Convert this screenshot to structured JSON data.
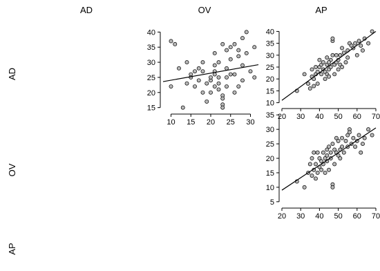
{
  "chart_data": [
    {
      "type": "scatter",
      "panel": "AD vs OV",
      "row_variable": "AD",
      "column_variable": "OV",
      "xlim": [
        8,
        32
      ],
      "ylim": [
        14,
        41
      ],
      "x_ticks": [
        10,
        15,
        20,
        25,
        30
      ],
      "y_ticks": [
        15,
        20,
        25,
        30,
        35,
        40
      ],
      "fit_line": {
        "x": [
          8,
          32
        ],
        "y": [
          23.6,
          29.2
        ]
      },
      "points": [
        [
          10,
          37
        ],
        [
          11,
          36
        ],
        [
          10,
          22
        ],
        [
          12,
          28
        ],
        [
          13,
          15
        ],
        [
          14,
          30
        ],
        [
          14,
          23
        ],
        [
          15,
          26
        ],
        [
          15,
          25
        ],
        [
          16,
          27
        ],
        [
          16,
          22
        ],
        [
          17,
          28
        ],
        [
          17,
          24
        ],
        [
          18,
          20
        ],
        [
          18,
          30
        ],
        [
          19,
          17
        ],
        [
          19,
          23
        ],
        [
          20,
          20
        ],
        [
          20,
          24
        ],
        [
          20,
          25
        ],
        [
          21,
          22
        ],
        [
          21,
          27
        ],
        [
          21,
          29
        ],
        [
          21,
          33
        ],
        [
          22,
          30
        ],
        [
          22,
          25
        ],
        [
          22,
          23
        ],
        [
          22,
          21
        ],
        [
          23,
          36
        ],
        [
          23,
          19
        ],
        [
          23,
          18
        ],
        [
          23,
          16
        ],
        [
          23,
          15
        ],
        [
          24,
          34
        ],
        [
          24,
          28
        ],
        [
          24,
          22
        ],
        [
          25,
          26
        ],
        [
          25,
          35
        ],
        [
          25,
          31
        ],
        [
          26,
          26
        ],
        [
          26,
          36
        ],
        [
          26,
          20
        ],
        [
          27,
          32
        ],
        [
          27,
          34
        ],
        [
          28,
          38
        ],
        [
          28,
          24
        ],
        [
          28,
          29
        ],
        [
          29,
          33
        ],
        [
          29,
          40
        ],
        [
          30,
          27
        ],
        [
          31,
          25
        ],
        [
          31,
          35
        ],
        [
          24,
          25
        ],
        [
          18,
          27
        ],
        [
          21,
          26
        ],
        [
          27,
          22
        ]
      ]
    },
    {
      "type": "scatter",
      "panel": "AD vs AP",
      "row_variable": "AD",
      "column_variable": "AP",
      "xlim": [
        20,
        70
      ],
      "ylim": [
        9,
        41
      ],
      "x_ticks": [
        20,
        30,
        40,
        50,
        60,
        70
      ],
      "y_ticks": [
        10,
        15,
        20,
        25,
        30,
        35,
        40
      ],
      "fit_line": {
        "x": [
          20,
          70
        ],
        "y": [
          11,
          40
        ]
      },
      "points": [
        [
          28,
          15
        ],
        [
          32,
          22
        ],
        [
          34,
          18
        ],
        [
          35,
          16
        ],
        [
          36,
          21
        ],
        [
          36,
          24
        ],
        [
          37,
          20
        ],
        [
          37,
          17
        ],
        [
          38,
          25
        ],
        [
          38,
          22
        ],
        [
          39,
          18
        ],
        [
          39,
          23
        ],
        [
          40,
          28
        ],
        [
          40,
          25
        ],
        [
          41,
          26
        ],
        [
          41,
          22
        ],
        [
          42,
          24
        ],
        [
          42,
          27
        ],
        [
          43,
          20
        ],
        [
          43,
          23
        ],
        [
          44,
          29
        ],
        [
          44,
          26
        ],
        [
          44,
          22
        ],
        [
          45,
          24
        ],
        [
          45,
          21
        ],
        [
          46,
          25
        ],
        [
          46,
          28
        ],
        [
          47,
          36
        ],
        [
          47,
          37
        ],
        [
          47,
          30
        ],
        [
          48,
          26
        ],
        [
          48,
          22
        ],
        [
          49,
          27
        ],
        [
          49,
          30
        ],
        [
          50,
          28
        ],
        [
          50,
          24
        ],
        [
          51,
          30
        ],
        [
          51,
          26
        ],
        [
          52,
          33
        ],
        [
          52,
          25
        ],
        [
          53,
          31
        ],
        [
          54,
          27
        ],
        [
          55,
          32
        ],
        [
          55,
          29
        ],
        [
          56,
          35
        ],
        [
          57,
          34
        ],
        [
          58,
          33
        ],
        [
          59,
          35
        ],
        [
          60,
          30
        ],
        [
          61,
          36
        ],
        [
          62,
          34
        ],
        [
          63,
          32
        ],
        [
          64,
          37
        ],
        [
          66,
          35
        ],
        [
          68,
          40
        ],
        [
          45,
          27
        ]
      ]
    },
    {
      "type": "scatter",
      "panel": "OV vs AP",
      "row_variable": "OV",
      "column_variable": "AP",
      "xlim": [
        20,
        70
      ],
      "ylim": [
        4,
        36
      ],
      "x_ticks": [
        20,
        30,
        40,
        50,
        60,
        70
      ],
      "y_ticks": [
        5,
        10,
        15,
        20,
        25,
        30,
        35
      ],
      "fit_line": {
        "x": [
          20,
          70
        ],
        "y": [
          9,
          30.5
        ]
      },
      "points": [
        [
          28,
          12
        ],
        [
          32,
          10
        ],
        [
          34,
          15
        ],
        [
          35,
          18
        ],
        [
          36,
          14
        ],
        [
          36,
          20
        ],
        [
          37,
          16
        ],
        [
          37,
          22
        ],
        [
          38,
          13
        ],
        [
          38,
          18
        ],
        [
          39,
          15
        ],
        [
          39,
          22
        ],
        [
          40,
          17
        ],
        [
          40,
          20
        ],
        [
          41,
          19
        ],
        [
          41,
          16
        ],
        [
          42,
          22
        ],
        [
          42,
          18
        ],
        [
          43,
          20
        ],
        [
          43,
          15
        ],
        [
          44,
          23
        ],
        [
          44,
          19
        ],
        [
          44,
          21
        ],
        [
          45,
          24
        ],
        [
          45,
          16
        ],
        [
          46,
          22
        ],
        [
          46,
          20
        ],
        [
          47,
          11
        ],
        [
          47,
          10
        ],
        [
          47,
          25
        ],
        [
          48,
          23
        ],
        [
          48,
          18
        ],
        [
          49,
          27
        ],
        [
          49,
          22
        ],
        [
          50,
          26
        ],
        [
          50,
          21
        ],
        [
          51,
          23
        ],
        [
          51,
          20
        ],
        [
          52,
          27
        ],
        [
          52,
          24
        ],
        [
          53,
          22
        ],
        [
          54,
          26
        ],
        [
          55,
          28
        ],
        [
          55,
          24
        ],
        [
          56,
          30
        ],
        [
          56,
          29
        ],
        [
          57,
          25
        ],
        [
          58,
          27
        ],
        [
          59,
          24
        ],
        [
          60,
          26
        ],
        [
          61,
          28
        ],
        [
          62,
          22
        ],
        [
          63,
          25
        ],
        [
          64,
          27
        ],
        [
          66,
          30
        ],
        [
          68,
          28
        ]
      ]
    }
  ],
  "labels": {
    "col_headers": [
      "AD",
      "OV",
      "AP"
    ],
    "row_headers": [
      "AD",
      "OV",
      "AP"
    ]
  },
  "colors": {
    "point_fill": "#b8b8b8",
    "point_stroke": "#000000",
    "line": "#000000",
    "axis": "#000000"
  }
}
